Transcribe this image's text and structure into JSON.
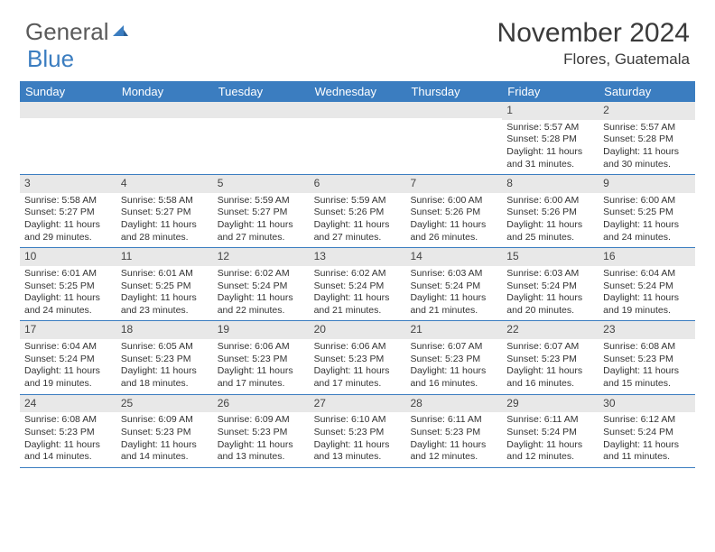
{
  "logo": {
    "part1": "General",
    "part2": "Blue"
  },
  "title": "November 2024",
  "location": "Flores, Guatemala",
  "colors": {
    "header_bar": "#3b7dc0",
    "header_text": "#ffffff",
    "daynum_bg": "#e8e8e8",
    "text": "#333333",
    "border": "#3b7dc0",
    "logo_gray": "#5a5a5a",
    "logo_blue": "#3b7dc0"
  },
  "typography": {
    "title_fontsize": 30,
    "location_fontsize": 17,
    "weekday_fontsize": 13,
    "daynum_fontsize": 12,
    "body_fontsize": 10.5
  },
  "weekdays": [
    "Sunday",
    "Monday",
    "Tuesday",
    "Wednesday",
    "Thursday",
    "Friday",
    "Saturday"
  ],
  "weeks": [
    [
      {
        "n": "",
        "sunrise": "",
        "sunset": "",
        "daylight": ""
      },
      {
        "n": "",
        "sunrise": "",
        "sunset": "",
        "daylight": ""
      },
      {
        "n": "",
        "sunrise": "",
        "sunset": "",
        "daylight": ""
      },
      {
        "n": "",
        "sunrise": "",
        "sunset": "",
        "daylight": ""
      },
      {
        "n": "",
        "sunrise": "",
        "sunset": "",
        "daylight": ""
      },
      {
        "n": "1",
        "sunrise": "Sunrise: 5:57 AM",
        "sunset": "Sunset: 5:28 PM",
        "daylight": "Daylight: 11 hours and 31 minutes."
      },
      {
        "n": "2",
        "sunrise": "Sunrise: 5:57 AM",
        "sunset": "Sunset: 5:28 PM",
        "daylight": "Daylight: 11 hours and 30 minutes."
      }
    ],
    [
      {
        "n": "3",
        "sunrise": "Sunrise: 5:58 AM",
        "sunset": "Sunset: 5:27 PM",
        "daylight": "Daylight: 11 hours and 29 minutes."
      },
      {
        "n": "4",
        "sunrise": "Sunrise: 5:58 AM",
        "sunset": "Sunset: 5:27 PM",
        "daylight": "Daylight: 11 hours and 28 minutes."
      },
      {
        "n": "5",
        "sunrise": "Sunrise: 5:59 AM",
        "sunset": "Sunset: 5:27 PM",
        "daylight": "Daylight: 11 hours and 27 minutes."
      },
      {
        "n": "6",
        "sunrise": "Sunrise: 5:59 AM",
        "sunset": "Sunset: 5:26 PM",
        "daylight": "Daylight: 11 hours and 27 minutes."
      },
      {
        "n": "7",
        "sunrise": "Sunrise: 6:00 AM",
        "sunset": "Sunset: 5:26 PM",
        "daylight": "Daylight: 11 hours and 26 minutes."
      },
      {
        "n": "8",
        "sunrise": "Sunrise: 6:00 AM",
        "sunset": "Sunset: 5:26 PM",
        "daylight": "Daylight: 11 hours and 25 minutes."
      },
      {
        "n": "9",
        "sunrise": "Sunrise: 6:00 AM",
        "sunset": "Sunset: 5:25 PM",
        "daylight": "Daylight: 11 hours and 24 minutes."
      }
    ],
    [
      {
        "n": "10",
        "sunrise": "Sunrise: 6:01 AM",
        "sunset": "Sunset: 5:25 PM",
        "daylight": "Daylight: 11 hours and 24 minutes."
      },
      {
        "n": "11",
        "sunrise": "Sunrise: 6:01 AM",
        "sunset": "Sunset: 5:25 PM",
        "daylight": "Daylight: 11 hours and 23 minutes."
      },
      {
        "n": "12",
        "sunrise": "Sunrise: 6:02 AM",
        "sunset": "Sunset: 5:24 PM",
        "daylight": "Daylight: 11 hours and 22 minutes."
      },
      {
        "n": "13",
        "sunrise": "Sunrise: 6:02 AM",
        "sunset": "Sunset: 5:24 PM",
        "daylight": "Daylight: 11 hours and 21 minutes."
      },
      {
        "n": "14",
        "sunrise": "Sunrise: 6:03 AM",
        "sunset": "Sunset: 5:24 PM",
        "daylight": "Daylight: 11 hours and 21 minutes."
      },
      {
        "n": "15",
        "sunrise": "Sunrise: 6:03 AM",
        "sunset": "Sunset: 5:24 PM",
        "daylight": "Daylight: 11 hours and 20 minutes."
      },
      {
        "n": "16",
        "sunrise": "Sunrise: 6:04 AM",
        "sunset": "Sunset: 5:24 PM",
        "daylight": "Daylight: 11 hours and 19 minutes."
      }
    ],
    [
      {
        "n": "17",
        "sunrise": "Sunrise: 6:04 AM",
        "sunset": "Sunset: 5:24 PM",
        "daylight": "Daylight: 11 hours and 19 minutes."
      },
      {
        "n": "18",
        "sunrise": "Sunrise: 6:05 AM",
        "sunset": "Sunset: 5:23 PM",
        "daylight": "Daylight: 11 hours and 18 minutes."
      },
      {
        "n": "19",
        "sunrise": "Sunrise: 6:06 AM",
        "sunset": "Sunset: 5:23 PM",
        "daylight": "Daylight: 11 hours and 17 minutes."
      },
      {
        "n": "20",
        "sunrise": "Sunrise: 6:06 AM",
        "sunset": "Sunset: 5:23 PM",
        "daylight": "Daylight: 11 hours and 17 minutes."
      },
      {
        "n": "21",
        "sunrise": "Sunrise: 6:07 AM",
        "sunset": "Sunset: 5:23 PM",
        "daylight": "Daylight: 11 hours and 16 minutes."
      },
      {
        "n": "22",
        "sunrise": "Sunrise: 6:07 AM",
        "sunset": "Sunset: 5:23 PM",
        "daylight": "Daylight: 11 hours and 16 minutes."
      },
      {
        "n": "23",
        "sunrise": "Sunrise: 6:08 AM",
        "sunset": "Sunset: 5:23 PM",
        "daylight": "Daylight: 11 hours and 15 minutes."
      }
    ],
    [
      {
        "n": "24",
        "sunrise": "Sunrise: 6:08 AM",
        "sunset": "Sunset: 5:23 PM",
        "daylight": "Daylight: 11 hours and 14 minutes."
      },
      {
        "n": "25",
        "sunrise": "Sunrise: 6:09 AM",
        "sunset": "Sunset: 5:23 PM",
        "daylight": "Daylight: 11 hours and 14 minutes."
      },
      {
        "n": "26",
        "sunrise": "Sunrise: 6:09 AM",
        "sunset": "Sunset: 5:23 PM",
        "daylight": "Daylight: 11 hours and 13 minutes."
      },
      {
        "n": "27",
        "sunrise": "Sunrise: 6:10 AM",
        "sunset": "Sunset: 5:23 PM",
        "daylight": "Daylight: 11 hours and 13 minutes."
      },
      {
        "n": "28",
        "sunrise": "Sunrise: 6:11 AM",
        "sunset": "Sunset: 5:23 PM",
        "daylight": "Daylight: 11 hours and 12 minutes."
      },
      {
        "n": "29",
        "sunrise": "Sunrise: 6:11 AM",
        "sunset": "Sunset: 5:24 PM",
        "daylight": "Daylight: 11 hours and 12 minutes."
      },
      {
        "n": "30",
        "sunrise": "Sunrise: 6:12 AM",
        "sunset": "Sunset: 5:24 PM",
        "daylight": "Daylight: 11 hours and 11 minutes."
      }
    ]
  ]
}
